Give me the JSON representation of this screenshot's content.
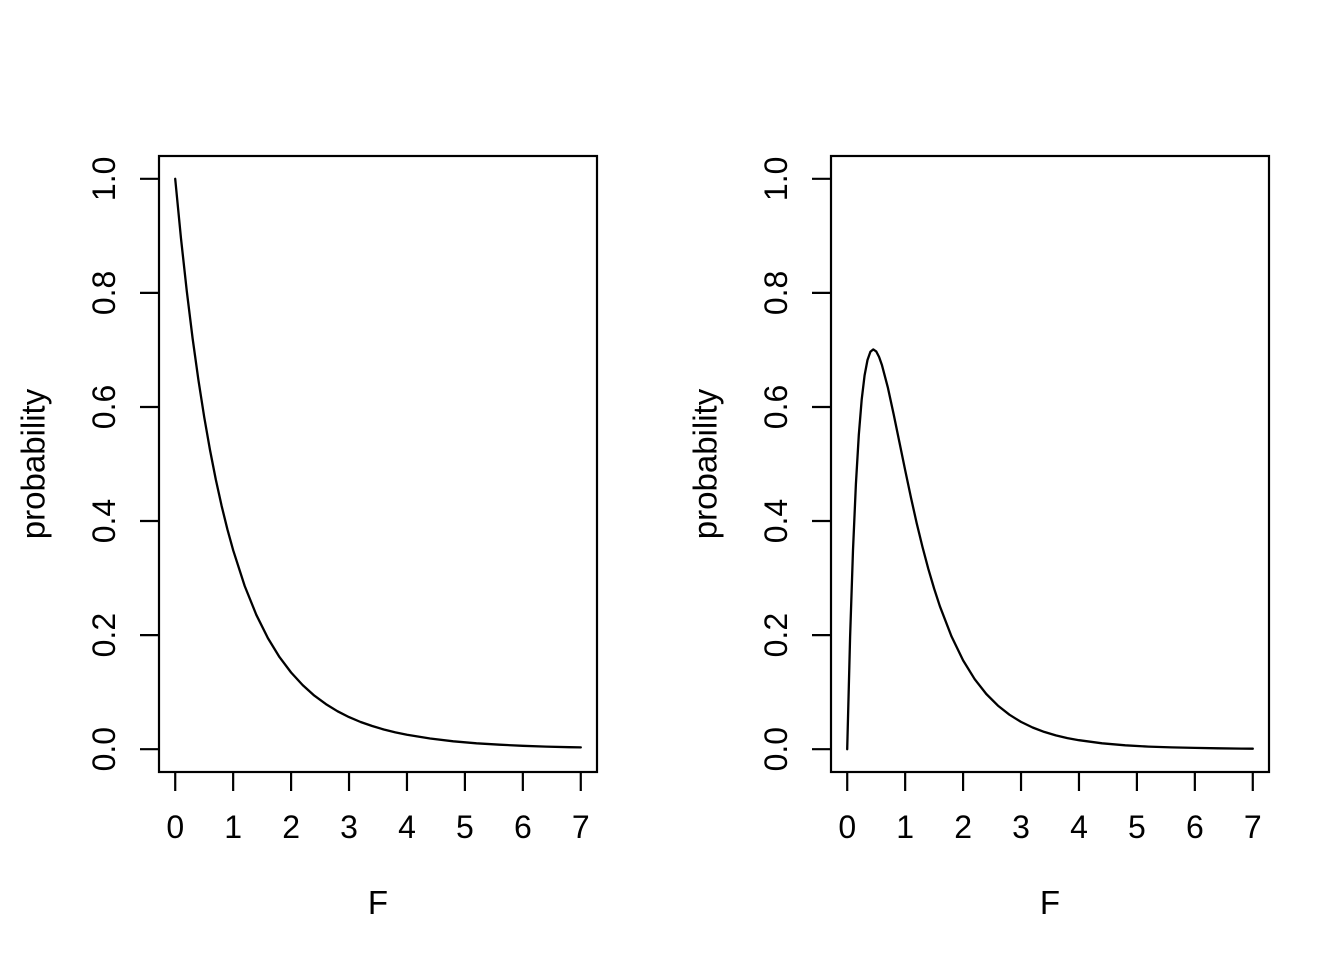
{
  "figure": {
    "background_color": "#ffffff",
    "foreground_color": "#000000",
    "layout": "two plots side by side"
  },
  "chart_data": [
    {
      "type": "line",
      "title": "",
      "xlabel": "F",
      "ylabel": "probability",
      "xlim": [
        0,
        7
      ],
      "ylim": [
        0,
        1
      ],
      "grid": false,
      "legend": false,
      "xtick_labels": [
        "0",
        "1",
        "2",
        "3",
        "4",
        "5",
        "6",
        "7"
      ],
      "ytick_labels": [
        "0.0",
        "0.2",
        "0.4",
        "0.6",
        "0.8",
        "1.0"
      ],
      "x": [
        0,
        0.1,
        0.2,
        0.3,
        0.4,
        0.5,
        0.6,
        0.7,
        0.8,
        0.9,
        1.0,
        1.2,
        1.4,
        1.6,
        1.8,
        2.0,
        2.2,
        2.4,
        2.6,
        2.8,
        3.0,
        3.2,
        3.4,
        3.6,
        3.8,
        4.0,
        4.4,
        4.8,
        5.2,
        5.6,
        6.0,
        6.4,
        6.8,
        7.0
      ],
      "y": [
        1.0,
        0.8954,
        0.8027,
        0.7204,
        0.6474,
        0.5824,
        0.5245,
        0.4728,
        0.4267,
        0.3855,
        0.3487,
        0.2861,
        0.2356,
        0.1947,
        0.1615,
        0.1344,
        0.1123,
        0.094,
        0.079,
        0.0666,
        0.0563,
        0.0477,
        0.0406,
        0.0346,
        0.0295,
        0.0253,
        0.0187,
        0.0139,
        0.0104,
        0.0079,
        0.006,
        0.0046,
        0.0035,
        0.0031
      ]
    },
    {
      "type": "line",
      "title": "",
      "xlabel": "F",
      "ylabel": "probability",
      "xlim": [
        0,
        7
      ],
      "ylim": [
        0,
        1
      ],
      "grid": false,
      "legend": false,
      "xtick_labels": [
        "0",
        "1",
        "2",
        "3",
        "4",
        "5",
        "6",
        "7"
      ],
      "ytick_labels": [
        "0.0",
        "0.2",
        "0.4",
        "0.6",
        "0.8",
        "1.0"
      ],
      "x": [
        0,
        0.05,
        0.1,
        0.15,
        0.2,
        0.25,
        0.3,
        0.35,
        0.4,
        0.45,
        0.5,
        0.55,
        0.6,
        0.7,
        0.8,
        0.9,
        1.0,
        1.1,
        1.2,
        1.3,
        1.4,
        1.5,
        1.6,
        1.8,
        2.0,
        2.2,
        2.4,
        2.6,
        2.8,
        3.0,
        3.2,
        3.4,
        3.6,
        3.8,
        4.0,
        4.4,
        4.8,
        5.2,
        5.6,
        6.0,
        6.4,
        6.8,
        7.0
      ],
      "y": [
        0,
        0.1968,
        0.349,
        0.4648,
        0.5509,
        0.613,
        0.6556,
        0.6824,
        0.6967,
        0.701,
        0.6974,
        0.6876,
        0.6731,
        0.6344,
        0.5877,
        0.5384,
        0.4889,
        0.441,
        0.3961,
        0.3544,
        0.3163,
        0.2818,
        0.2505,
        0.1977,
        0.1557,
        0.1227,
        0.0967,
        0.0764,
        0.0604,
        0.0478,
        0.038,
        0.0303,
        0.0242,
        0.0194,
        0.0157,
        0.0103,
        0.0068,
        0.0046,
        0.0031,
        0.0022,
        0.0015,
        0.0011,
        0.0009
      ]
    }
  ]
}
